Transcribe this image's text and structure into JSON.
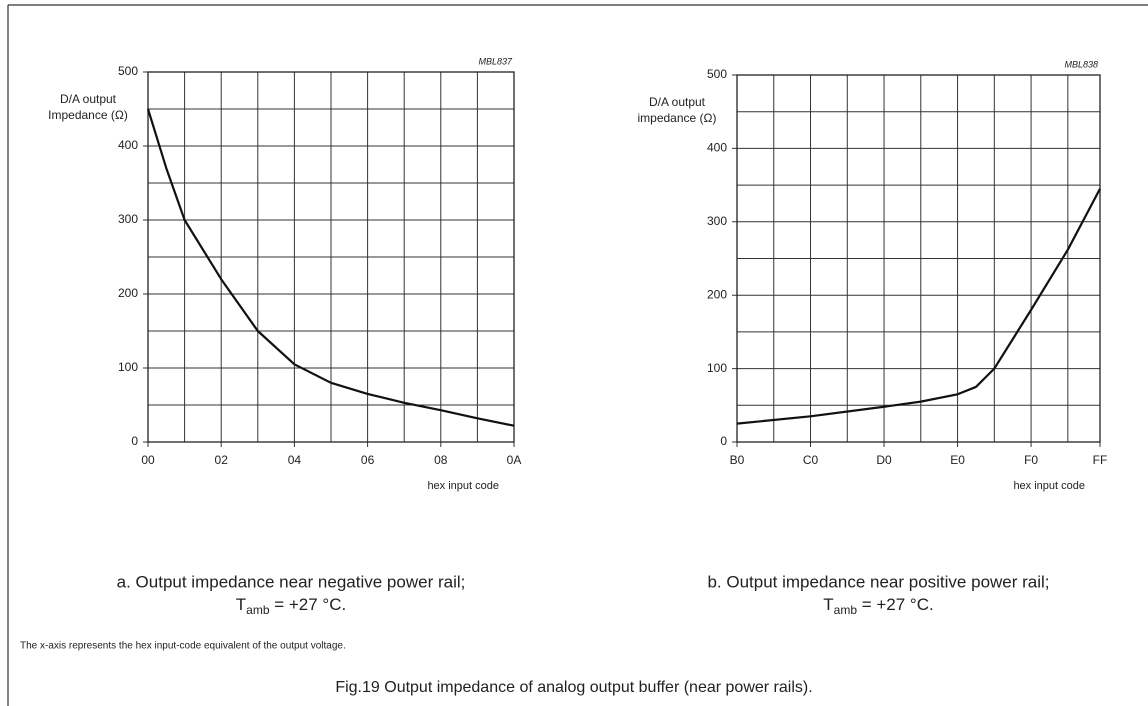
{
  "chart_data": [
    {
      "type": "line",
      "code": "MBL837",
      "y_label": [
        "D/A output",
        "Impedance (Ω)"
      ],
      "x_label": "hex input code",
      "caption": "a.  Output impedance near negative power rail;",
      "condition": [
        "T",
        "amb",
        " = +27 °C."
      ],
      "x": [
        0,
        0.5,
        1,
        2,
        3,
        4,
        5,
        6,
        7,
        8,
        9,
        10
      ],
      "series": [
        {
          "color": "#111111",
          "values": [
            450,
            370,
            300,
            220,
            150,
            105,
            80,
            65,
            53,
            43,
            32,
            22
          ]
        }
      ],
      "xlim": [
        0,
        10
      ],
      "ylim": [
        0,
        500
      ],
      "xticks": [
        {
          "value": 0,
          "label": "00"
        },
        {
          "value": 2,
          "label": "02"
        },
        {
          "value": 4,
          "label": "04"
        },
        {
          "value": 6,
          "label": "06"
        },
        {
          "value": 8,
          "label": "08"
        },
        {
          "value": 10,
          "label": "0A"
        }
      ],
      "x_minor_ticks": [
        1,
        3,
        5,
        7,
        9
      ],
      "yticks": [
        0,
        100,
        200,
        300,
        400,
        500
      ],
      "y_minor_ticks": [
        50,
        150,
        250,
        350,
        450
      ],
      "grid": true
    },
    {
      "type": "line",
      "code": "MBL838",
      "y_label": [
        "D/A output",
        "impedance (Ω)"
      ],
      "x_label": "hex input code",
      "caption": "b.  Output impedance near positive power rail;",
      "condition": [
        "T",
        "amb",
        " = +27 °C."
      ],
      "x": [
        176,
        192,
        208,
        216,
        224,
        228,
        232,
        240,
        248,
        255
      ],
      "series": [
        {
          "color": "#111111",
          "values": [
            25,
            35,
            48,
            55,
            65,
            75,
            100,
            180,
            262,
            345
          ]
        }
      ],
      "xlim": [
        176,
        255
      ],
      "ylim": [
        0,
        500
      ],
      "xticks": [
        {
          "value": 176,
          "label": "B0"
        },
        {
          "value": 192,
          "label": "C0"
        },
        {
          "value": 208,
          "label": "D0"
        },
        {
          "value": 224,
          "label": "E0"
        },
        {
          "value": 240,
          "label": "F0"
        },
        {
          "value": 255,
          "label": "FF"
        }
      ],
      "x_minor_ticks": [
        184,
        200,
        216,
        232,
        248
      ],
      "yticks": [
        0,
        100,
        200,
        300,
        400,
        500
      ],
      "y_minor_ticks": [
        50,
        150,
        250,
        350,
        450
      ],
      "grid": true
    }
  ],
  "note": "The x-axis represents the hex input-code equivalent of the output voltage.",
  "figure_title": "Fig.19  Output impedance of analog output buffer (near power rails)."
}
